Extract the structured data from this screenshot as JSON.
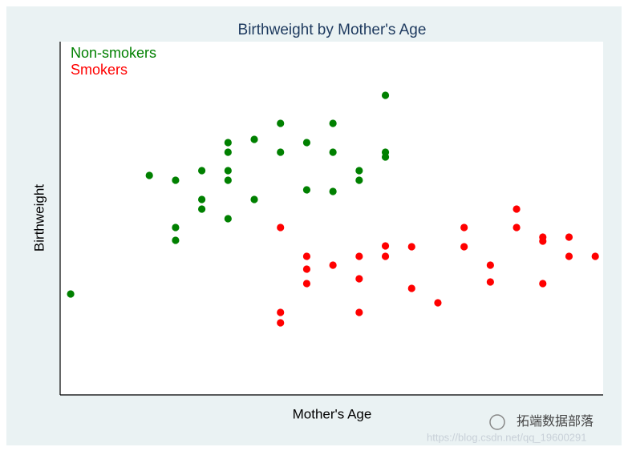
{
  "chart_data": {
    "type": "scatter",
    "title": "Birthweight by Mother's Age",
    "xlabel": "Mother's Age",
    "ylabel": "Birthweight",
    "xlim": [
      14.6,
      35.3
    ],
    "ylim": [
      0,
      440
    ],
    "legend": "top-left",
    "series": [
      {
        "name": "Non-smokers",
        "color": "#008000",
        "x": [
          15,
          18,
          19,
          19,
          19,
          20,
          20,
          20,
          21,
          21,
          21,
          21,
          21,
          22,
          22,
          23,
          23,
          24,
          24,
          25,
          25,
          25,
          26,
          26,
          27,
          27,
          27
        ],
        "values": [
          125,
          273,
          267,
          208,
          192,
          279,
          243,
          231,
          314,
          302,
          279,
          267,
          219,
          318,
          243,
          338,
          302,
          314,
          255,
          338,
          302,
          253,
          279,
          267,
          373,
          302,
          296
        ]
      },
      {
        "name": "Smokers",
        "color": "#ff0000",
        "x": [
          23,
          23,
          23,
          24,
          24,
          24,
          25,
          26,
          26,
          26,
          27,
          27,
          28,
          28,
          29,
          30,
          30,
          31,
          31,
          32,
          32,
          33,
          33,
          33,
          34,
          34,
          35
        ],
        "values": [
          208,
          102,
          89,
          172,
          156,
          138,
          161,
          172,
          144,
          102,
          185,
          172,
          184,
          132,
          114,
          208,
          184,
          161,
          140,
          231,
          208,
          196,
          191,
          138,
          196,
          172,
          172
        ]
      }
    ]
  },
  "watermark": {
    "brand": "拓端数据部落",
    "url": "https://blog.csdn.net/qq_19600291"
  }
}
